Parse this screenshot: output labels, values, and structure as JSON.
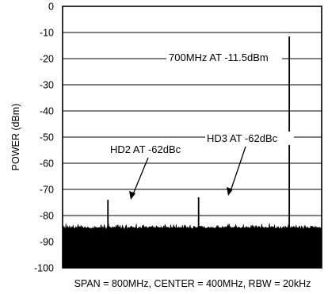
{
  "chart_data": {
    "type": "line",
    "title": "",
    "xlabel": "SPAN = 800MHz, CENTER = 400MHz, RBW = 20kHz",
    "ylabel": "POWER (dBm)",
    "xlim": [
      0,
      800
    ],
    "ylim": [
      -100,
      0
    ],
    "yticks": [
      0,
      -10,
      -20,
      -30,
      -40,
      -50,
      -60,
      -70,
      -80,
      -90,
      -100
    ],
    "grid": "horizontal",
    "noise_floor_dbm": -84.5,
    "series": [
      {
        "points": [
          {
            "x": 140,
            "y": -74
          },
          {
            "x": 420,
            "y": -73
          },
          {
            "x": 700,
            "y": -11.5
          }
        ]
      }
    ],
    "annotations": [
      {
        "text": "700MHz AT -11.5dBm"
      },
      {
        "text": "HD3 AT -62dBc"
      },
      {
        "text": "HD2 AT -62dBc"
      }
    ],
    "colors": {
      "trace": "#000000",
      "grid": "#000000",
      "background": "#ffffff"
    }
  }
}
